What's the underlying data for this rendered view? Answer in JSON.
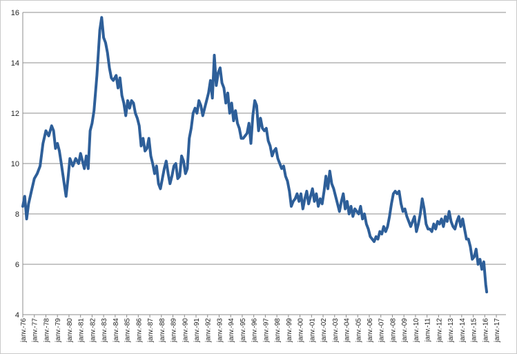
{
  "chart_data": {
    "type": "line",
    "title": "",
    "xlabel": "",
    "ylabel": "",
    "ylim": [
      4,
      16
    ],
    "yticks": [
      4,
      6,
      8,
      10,
      12,
      14,
      16
    ],
    "grid": "horizontal",
    "legend": "none",
    "colors": {
      "line": "#2e5f99",
      "grid": "#8c8c8c"
    },
    "x_tick_labels": [
      "janv.-76",
      "janv.-77",
      "janv.-78",
      "janv.-79",
      "janv.-80",
      "janv.-81",
      "janv.-82",
      "janv.-83",
      "janv.-84",
      "janv.-85",
      "janv.-86",
      "janv.-87",
      "janv.-88",
      "janv.-89",
      "janv.-90",
      "janv.-91",
      "janv.-92",
      "janv.-93",
      "janv.-94",
      "janv.-95",
      "janv.-96",
      "janv.-97",
      "janv.-98",
      "janv.-99",
      "janv.-00",
      "janv.-01",
      "janv.-02",
      "janv.-03",
      "janv.-04",
      "janv.-05",
      "janv.-06",
      "janv.-07",
      "janv.-08",
      "janv.-09",
      "janv.-10",
      "janv.-11",
      "janv.-12",
      "janv.-13",
      "janv.-14",
      "janv.-15",
      "janv.-16",
      "janv.-17"
    ],
    "series": [
      {
        "points": [
          [
            "1976-01",
            8.3
          ],
          [
            "1976-03",
            8.7
          ],
          [
            "1976-05",
            7.8
          ],
          [
            "1976-07",
            8.4
          ],
          [
            "1976-10",
            8.9
          ],
          [
            "1977-01",
            9.4
          ],
          [
            "1977-04",
            9.6
          ],
          [
            "1977-07",
            9.9
          ],
          [
            "1977-10",
            10.8
          ],
          [
            "1978-01",
            11.3
          ],
          [
            "1978-04",
            11.1
          ],
          [
            "1978-07",
            11.5
          ],
          [
            "1978-09",
            11.3
          ],
          [
            "1978-11",
            10.6
          ],
          [
            "1979-01",
            10.8
          ],
          [
            "1979-03",
            10.5
          ],
          [
            "1979-05",
            10.0
          ],
          [
            "1979-08",
            9.2
          ],
          [
            "1979-10",
            8.7
          ],
          [
            "1979-12",
            9.4
          ],
          [
            "1980-02",
            10.2
          ],
          [
            "1980-05",
            9.9
          ],
          [
            "1980-08",
            10.2
          ],
          [
            "1980-11",
            10.0
          ],
          [
            "1981-01",
            10.4
          ],
          [
            "1981-03",
            10.1
          ],
          [
            "1981-05",
            9.8
          ],
          [
            "1981-07",
            10.3
          ],
          [
            "1981-09",
            9.8
          ],
          [
            "1981-11",
            11.3
          ],
          [
            "1982-01",
            11.6
          ],
          [
            "1982-03",
            12.1
          ],
          [
            "1982-06",
            13.5
          ],
          [
            "1982-09",
            15.3
          ],
          [
            "1982-11",
            15.8
          ],
          [
            "1983-01",
            15.0
          ],
          [
            "1983-03",
            14.8
          ],
          [
            "1983-05",
            14.4
          ],
          [
            "1983-07",
            13.8
          ],
          [
            "1983-09",
            13.4
          ],
          [
            "1983-11",
            13.3
          ],
          [
            "1984-02",
            13.5
          ],
          [
            "1984-04",
            13.0
          ],
          [
            "1984-06",
            13.4
          ],
          [
            "1984-08",
            12.7
          ],
          [
            "1984-10",
            12.4
          ],
          [
            "1984-12",
            11.9
          ],
          [
            "1985-02",
            12.5
          ],
          [
            "1985-04",
            12.2
          ],
          [
            "1985-06",
            12.5
          ],
          [
            "1985-08",
            12.4
          ],
          [
            "1985-10",
            12.0
          ],
          [
            "1985-12",
            11.8
          ],
          [
            "1986-02",
            11.5
          ],
          [
            "1986-04",
            10.7
          ],
          [
            "1986-06",
            11.0
          ],
          [
            "1986-08",
            10.5
          ],
          [
            "1986-10",
            10.6
          ],
          [
            "1986-12",
            11.0
          ],
          [
            "1987-02",
            10.3
          ],
          [
            "1987-04",
            10.0
          ],
          [
            "1987-06",
            9.6
          ],
          [
            "1987-08",
            9.9
          ],
          [
            "1987-10",
            9.2
          ],
          [
            "1987-12",
            9.0
          ],
          [
            "1988-02",
            9.4
          ],
          [
            "1988-04",
            9.8
          ],
          [
            "1988-06",
            10.1
          ],
          [
            "1988-08",
            9.6
          ],
          [
            "1988-10",
            9.2
          ],
          [
            "1988-12",
            9.5
          ],
          [
            "1989-02",
            9.9
          ],
          [
            "1989-04",
            10.0
          ],
          [
            "1989-06",
            9.4
          ],
          [
            "1989-08",
            9.5
          ],
          [
            "1989-10",
            10.3
          ],
          [
            "1989-12",
            10.1
          ],
          [
            "1990-02",
            9.6
          ],
          [
            "1990-04",
            9.8
          ],
          [
            "1990-06",
            11.0
          ],
          [
            "1990-08",
            11.4
          ],
          [
            "1990-10",
            12.0
          ],
          [
            "1990-12",
            12.2
          ],
          [
            "1991-02",
            12.0
          ],
          [
            "1991-04",
            12.5
          ],
          [
            "1991-06",
            12.3
          ],
          [
            "1991-08",
            11.9
          ],
          [
            "1991-10",
            12.2
          ],
          [
            "1991-12",
            12.5
          ],
          [
            "1992-02",
            12.8
          ],
          [
            "1992-04",
            13.3
          ],
          [
            "1992-06",
            12.6
          ],
          [
            "1992-08",
            14.3
          ],
          [
            "1992-10",
            13.1
          ],
          [
            "1992-12",
            13.6
          ],
          [
            "1993-02",
            13.8
          ],
          [
            "1993-04",
            13.2
          ],
          [
            "1993-06",
            13.0
          ],
          [
            "1993-08",
            12.4
          ],
          [
            "1993-10",
            12.8
          ],
          [
            "1993-12",
            12.0
          ],
          [
            "1994-02",
            12.4
          ],
          [
            "1994-04",
            11.7
          ],
          [
            "1994-06",
            12.1
          ],
          [
            "1994-08",
            11.6
          ],
          [
            "1994-10",
            11.4
          ],
          [
            "1994-12",
            11.0
          ],
          [
            "1995-02",
            11.0
          ],
          [
            "1995-04",
            11.1
          ],
          [
            "1995-06",
            11.2
          ],
          [
            "1995-08",
            11.6
          ],
          [
            "1995-10",
            10.8
          ],
          [
            "1995-12",
            11.9
          ],
          [
            "1996-02",
            12.5
          ],
          [
            "1996-04",
            12.3
          ],
          [
            "1996-06",
            11.3
          ],
          [
            "1996-08",
            11.8
          ],
          [
            "1996-10",
            11.4
          ],
          [
            "1996-12",
            11.3
          ],
          [
            "1997-02",
            11.4
          ],
          [
            "1997-04",
            10.9
          ],
          [
            "1997-06",
            10.7
          ],
          [
            "1997-08",
            10.3
          ],
          [
            "1997-10",
            10.5
          ],
          [
            "1997-12",
            10.6
          ],
          [
            "1998-02",
            10.2
          ],
          [
            "1998-04",
            10.0
          ],
          [
            "1998-06",
            9.8
          ],
          [
            "1998-08",
            9.9
          ],
          [
            "1998-10",
            9.5
          ],
          [
            "1998-12",
            9.3
          ],
          [
            "1999-02",
            8.9
          ],
          [
            "1999-04",
            8.3
          ],
          [
            "1999-06",
            8.5
          ],
          [
            "1999-08",
            8.6
          ],
          [
            "1999-10",
            8.8
          ],
          [
            "1999-12",
            8.5
          ],
          [
            "2000-02",
            8.8
          ],
          [
            "2000-04",
            8.2
          ],
          [
            "2000-06",
            8.6
          ],
          [
            "2000-08",
            8.9
          ],
          [
            "2000-10",
            8.4
          ],
          [
            "2000-12",
            8.7
          ],
          [
            "2001-02",
            9.0
          ],
          [
            "2001-04",
            8.5
          ],
          [
            "2001-06",
            8.8
          ],
          [
            "2001-08",
            8.3
          ],
          [
            "2001-10",
            8.6
          ],
          [
            "2001-12",
            8.4
          ],
          [
            "2002-02",
            8.9
          ],
          [
            "2002-04",
            9.5
          ],
          [
            "2002-06",
            9.0
          ],
          [
            "2002-08",
            9.7
          ],
          [
            "2002-10",
            9.2
          ],
          [
            "2002-12",
            9.0
          ],
          [
            "2003-02",
            8.7
          ],
          [
            "2003-04",
            8.4
          ],
          [
            "2003-06",
            8.1
          ],
          [
            "2003-08",
            8.5
          ],
          [
            "2003-10",
            8.8
          ],
          [
            "2003-12",
            8.2
          ],
          [
            "2004-02",
            8.5
          ],
          [
            "2004-04",
            8.0
          ],
          [
            "2004-06",
            8.3
          ],
          [
            "2004-08",
            7.9
          ],
          [
            "2004-10",
            8.2
          ],
          [
            "2004-12",
            8.1
          ],
          [
            "2005-02",
            8.0
          ],
          [
            "2005-04",
            8.3
          ],
          [
            "2005-06",
            7.8
          ],
          [
            "2005-08",
            8.0
          ],
          [
            "2005-10",
            7.6
          ],
          [
            "2005-12",
            7.4
          ],
          [
            "2006-02",
            7.1
          ],
          [
            "2006-04",
            7.0
          ],
          [
            "2006-06",
            6.9
          ],
          [
            "2006-08",
            7.1
          ],
          [
            "2006-10",
            7.0
          ],
          [
            "2006-12",
            7.3
          ],
          [
            "2007-02",
            7.2
          ],
          [
            "2007-04",
            7.5
          ],
          [
            "2007-06",
            7.3
          ],
          [
            "2007-08",
            7.5
          ],
          [
            "2007-10",
            7.9
          ],
          [
            "2007-12",
            8.4
          ],
          [
            "2008-02",
            8.8
          ],
          [
            "2008-04",
            8.9
          ],
          [
            "2008-06",
            8.8
          ],
          [
            "2008-08",
            8.9
          ],
          [
            "2008-10",
            8.4
          ],
          [
            "2008-12",
            8.1
          ],
          [
            "2009-02",
            8.2
          ],
          [
            "2009-04",
            7.9
          ],
          [
            "2009-06",
            7.7
          ],
          [
            "2009-08",
            7.5
          ],
          [
            "2009-10",
            7.7
          ],
          [
            "2009-12",
            7.9
          ],
          [
            "2010-02",
            7.3
          ],
          [
            "2010-04",
            7.6
          ],
          [
            "2010-06",
            8.0
          ],
          [
            "2010-08",
            8.6
          ],
          [
            "2010-10",
            8.2
          ],
          [
            "2010-12",
            7.6
          ],
          [
            "2011-02",
            7.4
          ],
          [
            "2011-04",
            7.4
          ],
          [
            "2011-06",
            7.3
          ],
          [
            "2011-08",
            7.6
          ],
          [
            "2011-10",
            7.4
          ],
          [
            "2011-12",
            7.7
          ],
          [
            "2012-02",
            7.6
          ],
          [
            "2012-04",
            7.8
          ],
          [
            "2012-06",
            7.5
          ],
          [
            "2012-08",
            7.9
          ],
          [
            "2012-10",
            7.7
          ],
          [
            "2012-12",
            8.1
          ],
          [
            "2013-02",
            7.7
          ],
          [
            "2013-04",
            7.5
          ],
          [
            "2013-06",
            7.4
          ],
          [
            "2013-08",
            7.7
          ],
          [
            "2013-10",
            7.9
          ],
          [
            "2013-12",
            7.5
          ],
          [
            "2014-02",
            7.8
          ],
          [
            "2014-04",
            7.4
          ],
          [
            "2014-06",
            7.0
          ],
          [
            "2014-08",
            7.0
          ],
          [
            "2014-10",
            6.7
          ],
          [
            "2014-12",
            6.2
          ],
          [
            "2015-02",
            6.3
          ],
          [
            "2015-04",
            6.6
          ],
          [
            "2015-06",
            6.0
          ],
          [
            "2015-08",
            6.2
          ],
          [
            "2015-10",
            5.8
          ],
          [
            "2015-12",
            6.1
          ],
          [
            "2016-02",
            5.2
          ],
          [
            "2016-03",
            4.9
          ]
        ]
      }
    ]
  }
}
